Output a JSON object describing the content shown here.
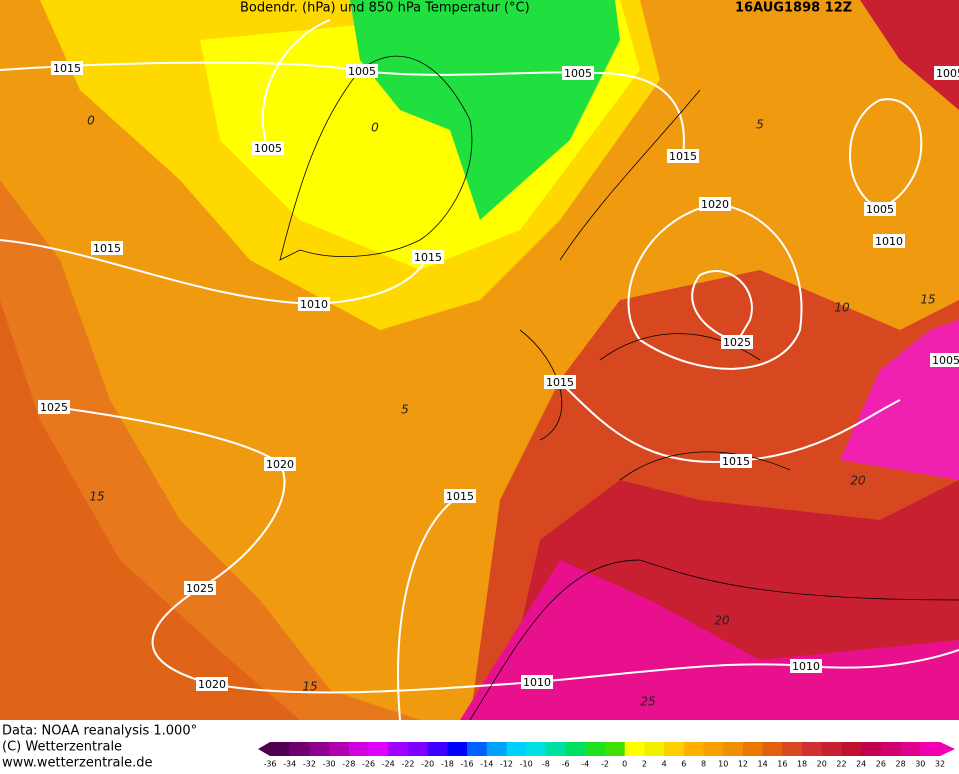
{
  "header": {
    "title": "Bodendr. (hPa) und 850 hPa Temperatur (°C)",
    "date": "16AUG1898 12Z"
  },
  "pressure_labels": [
    1015,
    1005,
    1005,
    1005,
    1015,
    1020,
    1005,
    1010,
    1015,
    1015,
    1010,
    1025,
    1005,
    1015,
    1025,
    1020,
    1015,
    1015,
    1025,
    1010,
    1020,
    1010,
    1005
  ],
  "temperature_labels": [
    0,
    0,
    5,
    5,
    10,
    15,
    15,
    20,
    20,
    25,
    15
  ],
  "footer": {
    "source": "Data: NOAA reanalysis 1.000°",
    "copyright": "(C) Wetterzentrale",
    "url": "www.wetterzentrale.de"
  },
  "colorbar": {
    "ticks": [
      -36,
      -34,
      -32,
      -30,
      -28,
      -26,
      -24,
      -22,
      -20,
      -18,
      -16,
      -14,
      -12,
      -10,
      -8,
      -6,
      -4,
      -2,
      0,
      2,
      4,
      6,
      8,
      10,
      12,
      14,
      16,
      18,
      20,
      22,
      24,
      26,
      28,
      30,
      32
    ],
    "colors": [
      "#500050",
      "#700070",
      "#900090",
      "#b000b0",
      "#d000e0",
      "#e000ff",
      "#a000ff",
      "#8000ff",
      "#4000ff",
      "#0000ff",
      "#0060ff",
      "#00a0ff",
      "#00d0ff",
      "#00e0e0",
      "#00e0a0",
      "#00e060",
      "#20e020",
      "#40e000",
      "#ffff00",
      "#f0f000",
      "#ffd000",
      "#ffb000",
      "#f8a000",
      "#f09000",
      "#e87800",
      "#e06010",
      "#d84820",
      "#d03030",
      "#c82030",
      "#c01030",
      "#c00050",
      "#d00070",
      "#e00090",
      "#f000b0"
    ]
  }
}
